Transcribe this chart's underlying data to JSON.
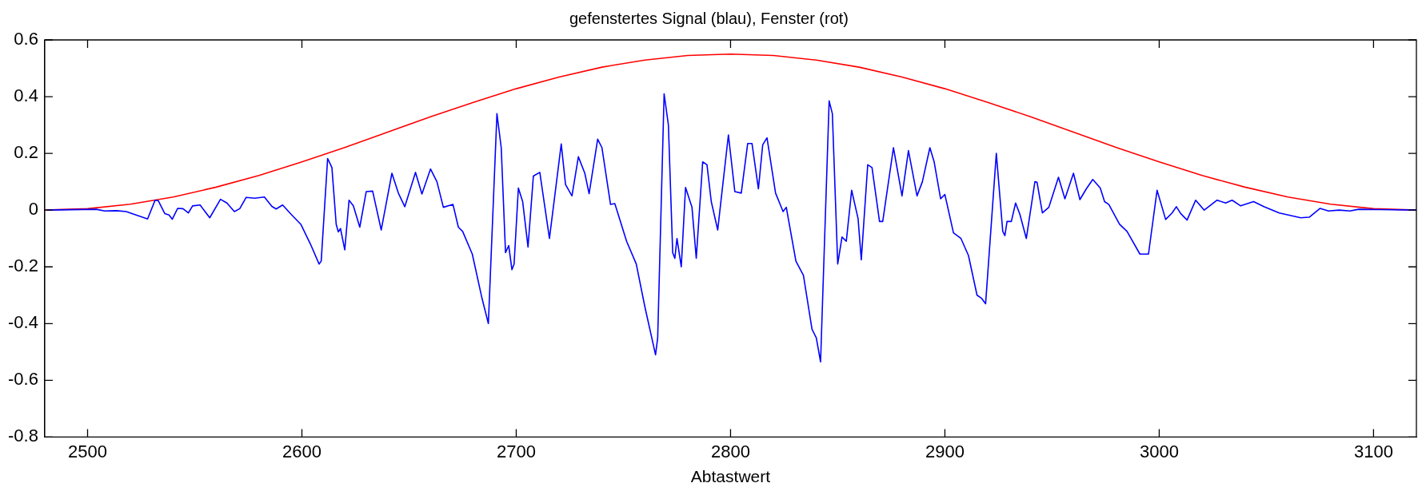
{
  "chart_data": {
    "type": "line",
    "title": "gefenstertes Signal (blau), Fenster (rot)",
    "xlabel": "Abtastwert",
    "xlim": [
      2480,
      3120
    ],
    "xticks": [
      2500,
      2600,
      2700,
      2800,
      2900,
      3000,
      3100
    ],
    "ylim": [
      -0.8,
      0.6
    ],
    "yticks": [
      -0.8,
      -0.6,
      -0.4,
      -0.2,
      0,
      0.2,
      0.4,
      0.6
    ],
    "marker": "none",
    "line_style": "solid",
    "series": [
      {
        "color": "#0000ff",
        "x": [
          2481,
          2504,
          2508,
          2513.5,
          2518,
          2528,
          2531.5,
          2533,
          2536,
          2538,
          2539.5,
          2542,
          2544.5,
          2547,
          2549,
          2552.5,
          2557,
          2562,
          2565,
          2568.5,
          2571,
          2574,
          2578,
          2582.5,
          2586,
          2588,
          2591,
          2595,
          2599.5,
          2604,
          2608,
          2609,
          2612,
          2614,
          2616,
          2617,
          2618,
          2620,
          2622,
          2624,
          2627,
          2630,
          2633,
          2637,
          2642,
          2645,
          2648,
          2653,
          2656,
          2660,
          2663,
          2666,
          2670.5,
          2673,
          2675,
          2679.5,
          2684,
          2687,
          2691,
          2693,
          2695,
          2696.5,
          2698,
          2699,
          2701,
          2703,
          2705.5,
          2708,
          2711,
          2715.5,
          2721,
          2723,
          2726,
          2729,
          2732,
          2734,
          2738,
          2740,
          2744,
          2746,
          2751.5,
          2756,
          2760,
          2765,
          2766,
          2769,
          2771,
          2773,
          2774,
          2775,
          2777,
          2779,
          2782,
          2784,
          2787,
          2789,
          2791,
          2794,
          2799,
          2802,
          2805,
          2808,
          2810,
          2813,
          2815,
          2817,
          2821,
          2824.5,
          2826,
          2830.5,
          2834,
          2838,
          2840,
          2842,
          2846,
          2847.5,
          2850,
          2852,
          2854,
          2856.5,
          2859.5,
          2861,
          2864,
          2866,
          2869.5,
          2871,
          2876,
          2880,
          2883,
          2887,
          2889.5,
          2893,
          2895,
          2898,
          2900,
          2904,
          2907.5,
          2911,
          2915,
          2917,
          2919,
          2924,
          2927,
          2928,
          2929,
          2931,
          2933,
          2935,
          2938,
          2942,
          2943,
          2945.5,
          2948.5,
          2953,
          2956,
          2960,
          2963,
          2966,
          2969,
          2972.5,
          2974.5,
          2976.5,
          2981.5,
          2985,
          2991,
          2995,
          2999,
          3003,
          3006,
          3008,
          3010,
          3013,
          3017,
          3021,
          3027,
          3031,
          3034,
          3038,
          3044,
          3049,
          3056,
          3066,
          3070,
          3075,
          3079,
          3084,
          3089,
          3093,
          3103,
          3120
        ],
        "values": [
          0,
          0.003,
          -0.003,
          -0.002,
          -0.005,
          -0.031,
          0.035,
          0.033,
          -0.012,
          -0.017,
          -0.032,
          0.006,
          0.005,
          -0.01,
          0.015,
          0.018,
          -0.027,
          0.038,
          0.025,
          -0.005,
          0.005,
          0.045,
          0.042,
          0.046,
          0.013,
          0.004,
          0.018,
          -0.015,
          -0.05,
          -0.12,
          -0.19,
          -0.18,
          0.182,
          0.15,
          -0.05,
          -0.077,
          -0.065,
          -0.14,
          0.035,
          0.015,
          -0.06,
          0.065,
          0.067,
          -0.07,
          0.13,
          0.06,
          0.012,
          0.133,
          0.057,
          0.145,
          0.1,
          0.01,
          0.02,
          -0.06,
          -0.075,
          -0.155,
          -0.31,
          -0.4,
          0.34,
          0.22,
          -0.15,
          -0.125,
          -0.21,
          -0.19,
          0.078,
          0.03,
          -0.13,
          0.12,
          0.133,
          -0.1,
          0.233,
          0.09,
          0.05,
          0.188,
          0.13,
          0.058,
          0.25,
          0.22,
          0.02,
          0.023,
          -0.11,
          -0.19,
          -0.34,
          -0.51,
          -0.45,
          0.41,
          0.3,
          -0.15,
          -0.17,
          -0.1,
          -0.2,
          0.08,
          0.01,
          -0.17,
          0.17,
          0.16,
          0.03,
          -0.07,
          0.265,
          0.065,
          0.06,
          0.235,
          0.235,
          0.075,
          0.23,
          0.255,
          0.06,
          -0.005,
          0.01,
          -0.18,
          -0.23,
          -0.42,
          -0.45,
          -0.535,
          0.385,
          0.34,
          -0.19,
          -0.095,
          -0.11,
          0.07,
          -0.03,
          -0.175,
          0.16,
          0.15,
          -0.04,
          -0.04,
          0.22,
          0.05,
          0.21,
          0.05,
          0.1,
          0.22,
          0.17,
          0.04,
          0.055,
          -0.08,
          -0.1,
          -0.16,
          -0.3,
          -0.31,
          -0.33,
          0.2,
          -0.075,
          -0.09,
          -0.04,
          -0.04,
          0.025,
          -0.015,
          -0.1,
          0.1,
          0.098,
          -0.01,
          0.01,
          0.116,
          0.04,
          0.13,
          0.037,
          0.075,
          0.108,
          0.078,
          0.03,
          0.02,
          -0.05,
          -0.075,
          -0.155,
          -0.155,
          0.07,
          -0.033,
          -0.01,
          0.012,
          -0.012,
          -0.035,
          0.035,
          0,
          0.035,
          0.025,
          0.035,
          0.015,
          0.03,
          0.012,
          -0.01,
          -0.027,
          -0.025,
          0.006,
          -0.003,
          0,
          -0.003,
          0.003,
          0.002,
          0
        ]
      },
      {
        "color": "#ff0000",
        "x": [
          2480,
          2500,
          2520,
          2540,
          2560,
          2580,
          2600,
          2620,
          2640,
          2660,
          2680,
          2700,
          2720,
          2740,
          2760,
          2780,
          2800,
          2820,
          2840,
          2860,
          2880,
          2900,
          2920,
          2940,
          2960,
          2980,
          3000,
          3020,
          3040,
          3060,
          3080,
          3100,
          3120
        ],
        "values": [
          0,
          0.005,
          0.021,
          0.046,
          0.081,
          0.122,
          0.17,
          0.221,
          0.275,
          0.329,
          0.38,
          0.428,
          0.469,
          0.504,
          0.529,
          0.545,
          0.55,
          0.545,
          0.529,
          0.504,
          0.469,
          0.428,
          0.38,
          0.329,
          0.275,
          0.221,
          0.17,
          0.122,
          0.081,
          0.046,
          0.021,
          0.005,
          0
        ]
      }
    ]
  }
}
